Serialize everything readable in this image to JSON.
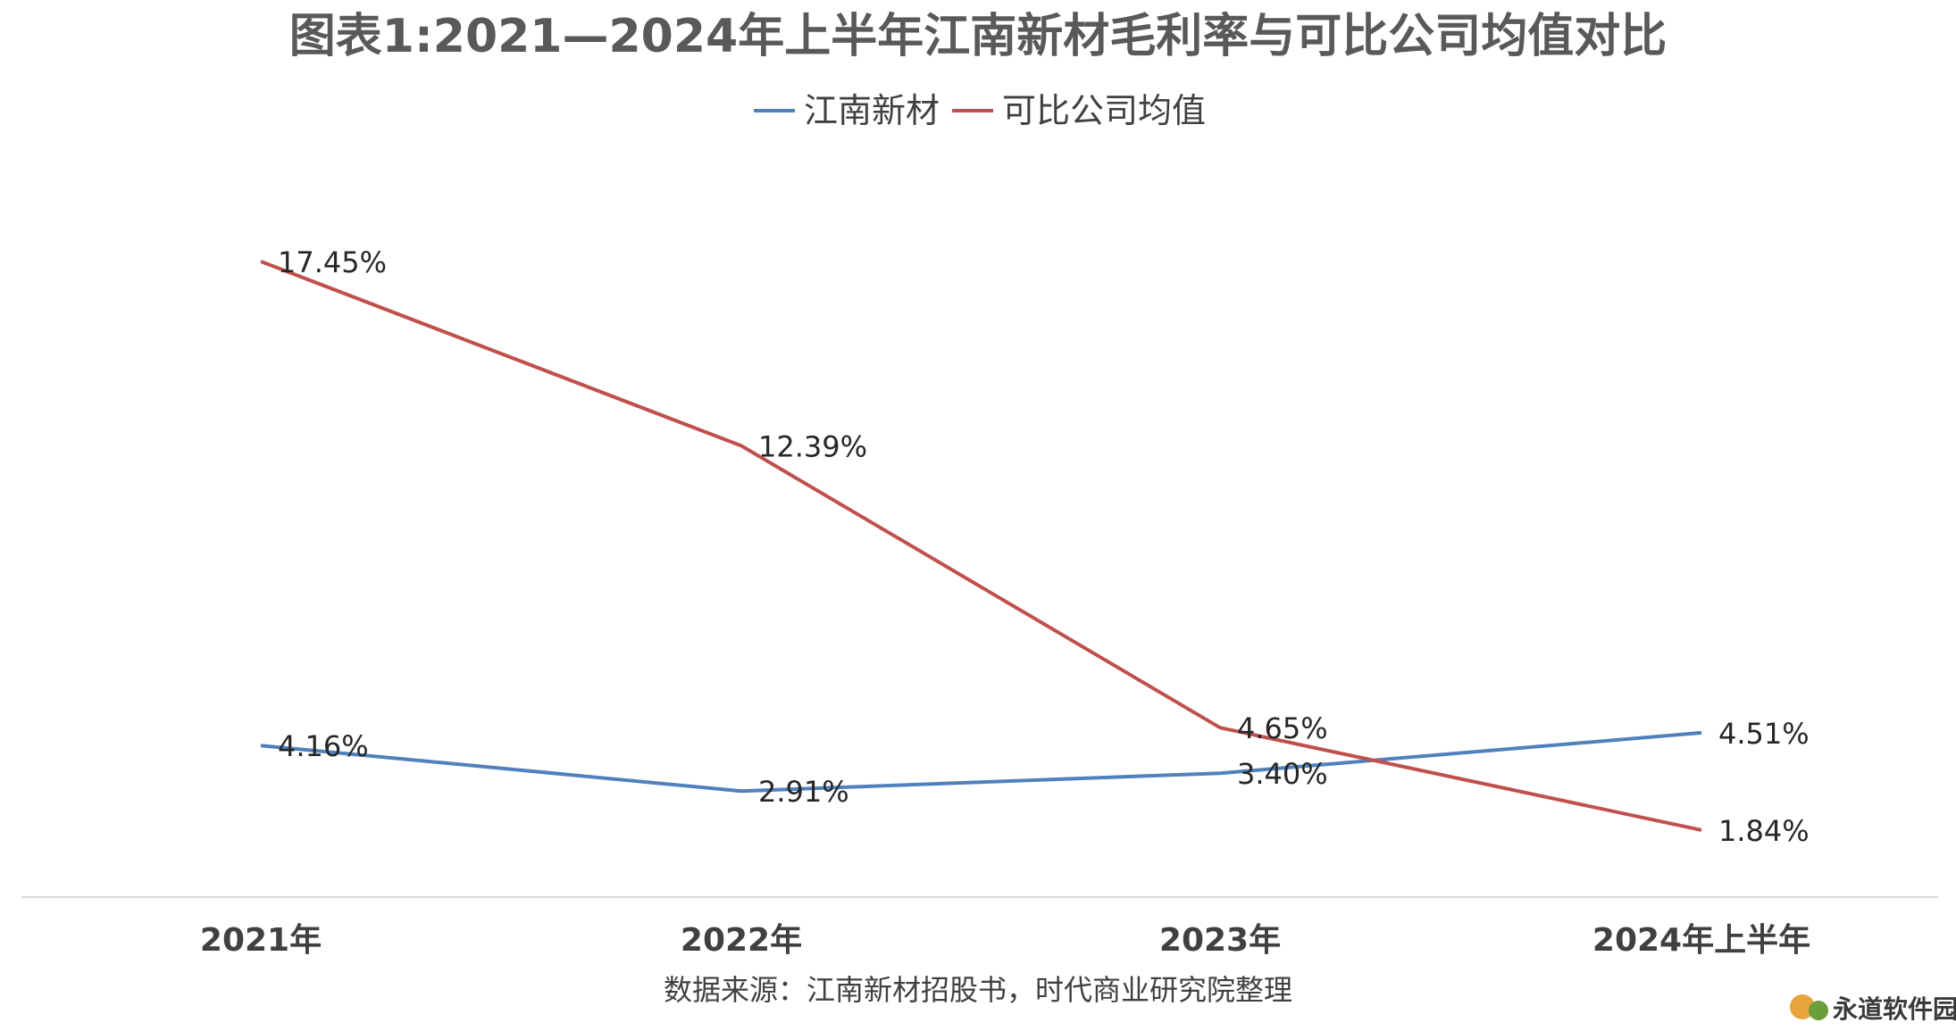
{
  "chart_data": {
    "type": "line",
    "title": "图表1:2021—2024年上半年江南新材毛利率与可比公司均值对比",
    "categories": [
      "2021年",
      "2022年",
      "2023年",
      "2024年上半年"
    ],
    "series": [
      {
        "name": "江南新材",
        "color": "#4f81bd",
        "values": [
          4.16,
          2.91,
          3.4,
          4.51
        ],
        "labels": [
          "4.16%",
          "2.91%",
          "3.40%",
          "4.51%"
        ]
      },
      {
        "name": "可比公司均值",
        "color": "#c0504d",
        "values": [
          17.45,
          12.39,
          4.65,
          1.84
        ],
        "labels": [
          "17.45%",
          "12.39%",
          "4.65%",
          "1.84%"
        ]
      }
    ],
    "ylim": [
      0,
      21
    ],
    "legend": "top",
    "grid": false,
    "xlabel": "",
    "ylabel": ""
  },
  "source_note": "数据来源：江南新材招股书，时代商业研究院整理",
  "watermark": {
    "text": "永道软件园"
  }
}
